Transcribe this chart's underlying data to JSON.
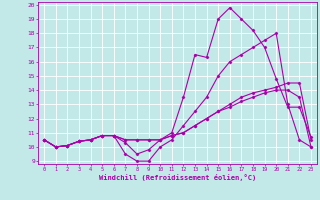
{
  "title": "",
  "xlabel": "Windchill (Refroidissement éolien,°C)",
  "ylabel": "",
  "x_ticks": [
    0,
    1,
    2,
    3,
    4,
    5,
    6,
    7,
    8,
    9,
    10,
    11,
    12,
    13,
    14,
    15,
    16,
    17,
    18,
    19,
    20,
    21,
    22,
    23
  ],
  "ylim": [
    9,
    20
  ],
  "xlim": [
    -0.5,
    23.5
  ],
  "yticks": [
    9,
    10,
    11,
    12,
    13,
    14,
    15,
    16,
    17,
    18,
    19,
    20
  ],
  "bg_color": "#c2e8e8",
  "grid_color": "#ffffff",
  "line_color": "#aa00aa",
  "line_width": 0.8,
  "marker": "D",
  "marker_size": 1.5,
  "series": [
    [
      10.5,
      10.0,
      10.1,
      10.4,
      10.5,
      10.8,
      10.8,
      10.3,
      9.5,
      9.8,
      10.5,
      11.0,
      13.5,
      16.5,
      16.3,
      19.0,
      19.8,
      19.0,
      18.2,
      17.0,
      14.8,
      12.8,
      12.8,
      10.7
    ],
    [
      10.5,
      10.0,
      10.1,
      10.4,
      10.5,
      10.8,
      10.8,
      9.5,
      9.0,
      9.0,
      10.0,
      10.5,
      11.5,
      12.5,
      13.5,
      15.0,
      16.0,
      16.5,
      17.0,
      17.5,
      18.0,
      13.0,
      10.5,
      10.0
    ],
    [
      10.5,
      10.0,
      10.1,
      10.4,
      10.5,
      10.8,
      10.8,
      10.5,
      10.5,
      10.5,
      10.5,
      10.8,
      11.0,
      11.5,
      12.0,
      12.5,
      13.0,
      13.5,
      13.8,
      14.0,
      14.2,
      14.5,
      14.5,
      10.5
    ],
    [
      10.5,
      10.0,
      10.1,
      10.4,
      10.5,
      10.8,
      10.8,
      10.5,
      10.5,
      10.5,
      10.5,
      10.8,
      11.0,
      11.5,
      12.0,
      12.5,
      12.8,
      13.2,
      13.5,
      13.8,
      14.0,
      14.0,
      13.5,
      10.0
    ]
  ]
}
